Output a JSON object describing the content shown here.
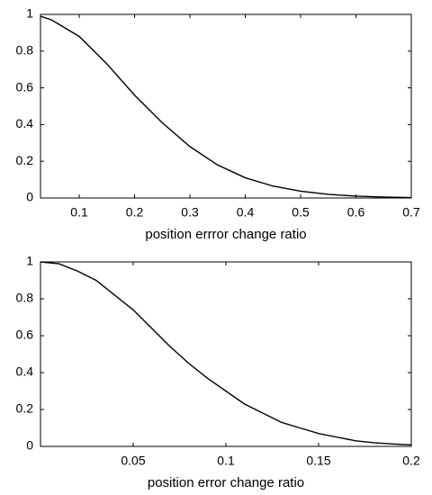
{
  "chart_data": [
    {
      "type": "line",
      "x_label": "position errror change ratio",
      "x": [
        0.03,
        0.05,
        0.1,
        0.15,
        0.2,
        0.25,
        0.3,
        0.35,
        0.4,
        0.45,
        0.5,
        0.55,
        0.6,
        0.65,
        0.7
      ],
      "series": [
        {
          "color": "#000000",
          "values": [
            0.99,
            0.97,
            0.88,
            0.73,
            0.56,
            0.41,
            0.28,
            0.18,
            0.11,
            0.065,
            0.037,
            0.02,
            0.01,
            0.005,
            0.002
          ]
        }
      ],
      "xlim": [
        0.03,
        0.7
      ],
      "xticks": [
        0.1,
        0.2,
        0.3,
        0.4,
        0.5,
        0.6,
        0.7
      ],
      "ylim": [
        0,
        1
      ],
      "yticks": [
        0,
        0.2,
        0.4,
        0.6,
        0.8,
        1
      ]
    },
    {
      "type": "line",
      "x_label": "position error change ratio",
      "x": [
        0,
        0.01,
        0.02,
        0.03,
        0.04,
        0.05,
        0.06,
        0.07,
        0.08,
        0.09,
        0.1,
        0.11,
        0.12,
        0.13,
        0.14,
        0.15,
        0.16,
        0.17,
        0.18,
        0.19,
        0.2
      ],
      "series": [
        {
          "color": "#000000",
          "values": [
            1,
            0.99,
            0.95,
            0.9,
            0.82,
            0.74,
            0.64,
            0.54,
            0.45,
            0.37,
            0.3,
            0.23,
            0.18,
            0.13,
            0.1,
            0.07,
            0.05,
            0.03,
            0.02,
            0.013,
            0.008
          ]
        }
      ],
      "xlim": [
        0,
        0.2
      ],
      "xticks": [
        0.05,
        0.1,
        0.15,
        0.2
      ],
      "ylim": [
        0,
        1
      ],
      "yticks": [
        0,
        0.2,
        0.4,
        0.6,
        0.8,
        1
      ]
    }
  ]
}
